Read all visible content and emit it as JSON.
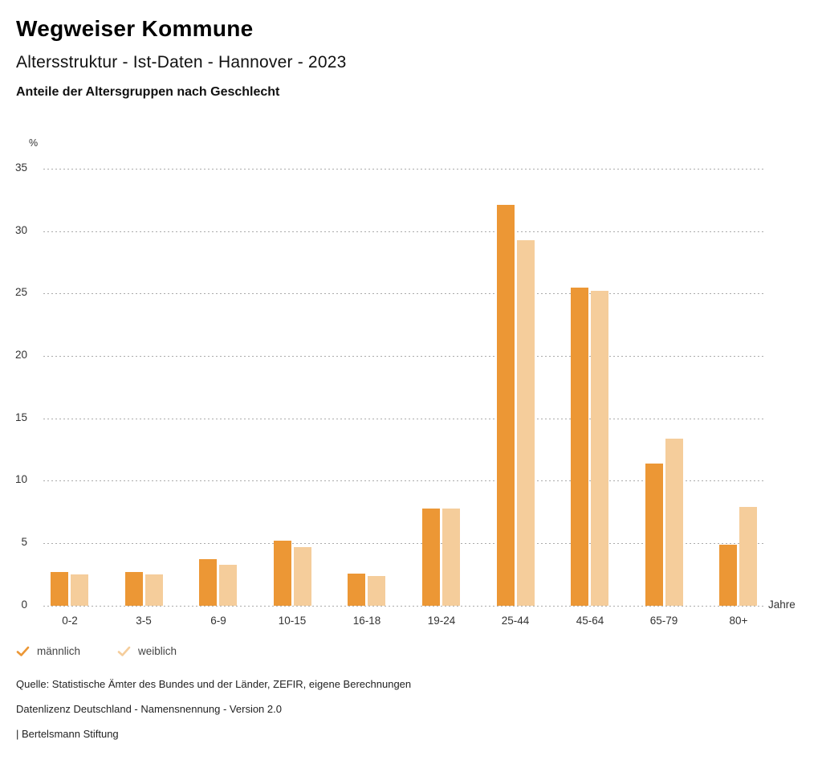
{
  "header": {
    "title": "Wegweiser Kommune",
    "subtitle": "Altersstruktur - Ist-Daten - Hannover - 2023",
    "chart_heading": "Anteile der Altersgruppen nach Geschlecht"
  },
  "chart_data": {
    "type": "bar",
    "title": "Anteile der Altersgruppen nach Geschlecht",
    "categories": [
      "0-2",
      "3-5",
      "6-9",
      "10-15",
      "16-18",
      "19-24",
      "25-44",
      "45-64",
      "65-79",
      "80+"
    ],
    "series": [
      {
        "name": "männlich",
        "color": "#EC9735",
        "values": [
          2.7,
          2.7,
          3.7,
          5.2,
          2.6,
          7.8,
          32.1,
          25.5,
          11.4,
          4.9
        ]
      },
      {
        "name": "weiblich",
        "color": "#F5CD9B",
        "values": [
          2.5,
          2.5,
          3.3,
          4.7,
          2.4,
          7.8,
          29.3,
          25.2,
          13.4,
          7.9
        ]
      }
    ],
    "unit_label": "%",
    "xlabel": "Jahre",
    "ylim": [
      0,
      35
    ],
    "yticks": [
      0,
      5,
      10,
      15,
      20,
      25,
      30,
      35
    ],
    "grid": "horizontal-dotted",
    "legend_position": "bottom-left",
    "gridline_color": "#ababab",
    "tick_text_color": "#333333"
  },
  "legend": {
    "check_icon": "check-mark"
  },
  "footer": {
    "source": "Quelle: Statistische Ämter des Bundes und der Länder, ZEFIR, eigene Berechnungen",
    "license": "Datenlizenz Deutschland - Namensnennung - Version 2.0",
    "attribution": "| Bertelsmann Stiftung"
  }
}
